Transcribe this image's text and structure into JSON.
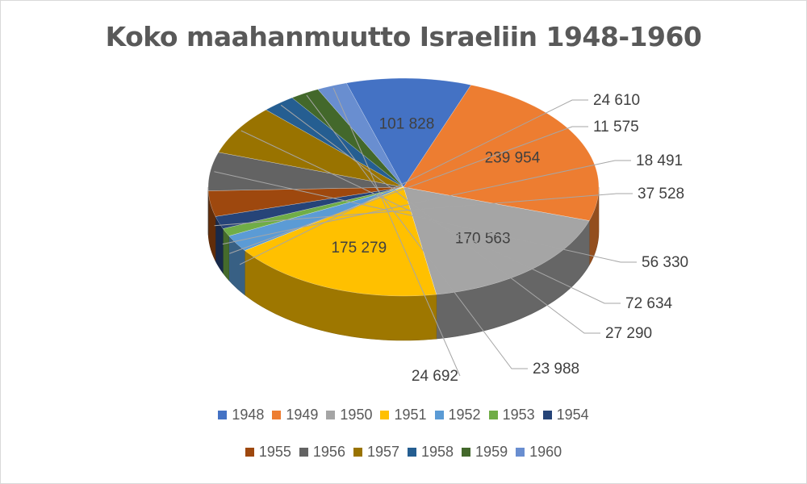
{
  "chart_data": {
    "type": "pie",
    "title": "Koko maahanmuutto Israeliin 1948-1960",
    "categories": [
      "1948",
      "1949",
      "1950",
      "1951",
      "1952",
      "1953",
      "1954",
      "1955",
      "1956",
      "1957",
      "1958",
      "1959",
      "1960"
    ],
    "values": [
      101828,
      239954,
      170563,
      175279,
      24610,
      11575,
      18491,
      37528,
      56330,
      72634,
      27290,
      23988,
      24692
    ],
    "data_labels": [
      "101 828",
      "239 954",
      "170 563",
      "175 279",
      "24 610",
      "11 575",
      "18 491",
      "37 528",
      "56 330",
      "72 634",
      "27 290",
      "23 988",
      "24 692"
    ],
    "colors": [
      "#4472c4",
      "#ed7d31",
      "#a5a5a5",
      "#ffc000",
      "#5b9bd5",
      "#70ad47",
      "#264478",
      "#9e480e",
      "#636363",
      "#997300",
      "#255e91",
      "#43682b",
      "#698ed0"
    ],
    "legend_position": "bottom",
    "style": "3d-pie"
  }
}
